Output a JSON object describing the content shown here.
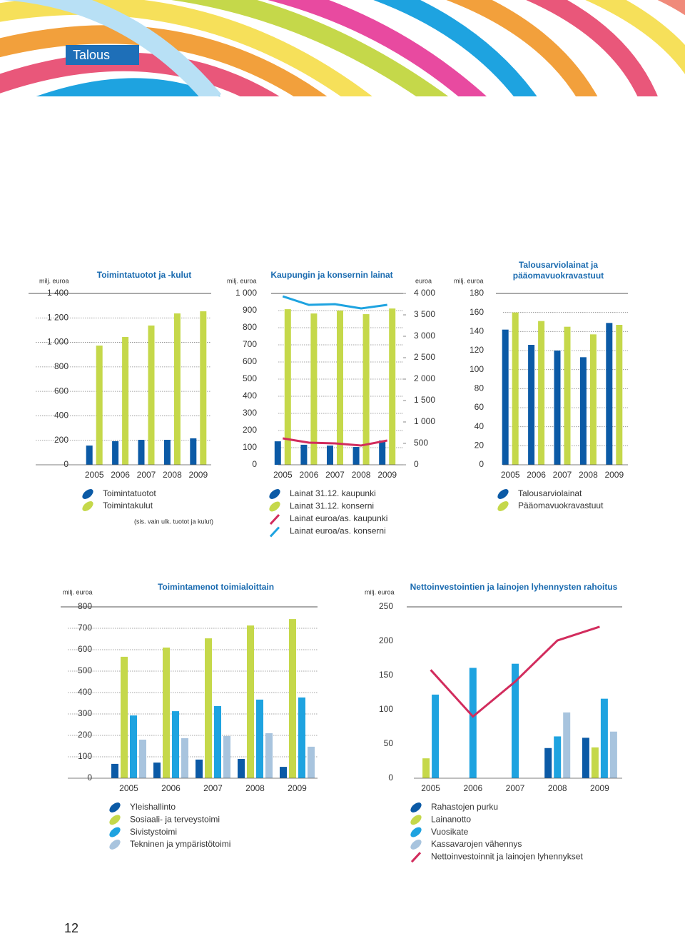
{
  "header": {
    "title": "Talous"
  },
  "page_number": "12",
  "chart_data": [
    {
      "type": "bar",
      "title": "Toimintatuotot ja -kulut",
      "unit_label": "milj. euroa",
      "note": "(sis. vain ulk. tuotot ja kulut)",
      "categories": [
        "2005",
        "2006",
        "2007",
        "2008",
        "2009"
      ],
      "series": [
        {
          "name": "Toimintatuotot",
          "color": "#0b5aa6",
          "values": [
            157,
            193,
            204,
            204,
            216
          ]
        },
        {
          "name": "Toimintakulut",
          "color": "#c5d84a",
          "values": [
            974,
            1044,
            1138,
            1237,
            1254
          ]
        }
      ],
      "ylim": [
        0,
        1400
      ],
      "yticks": [
        0,
        200,
        400,
        600,
        800,
        {
          "value": 1000,
          "label": "1 000"
        },
        {
          "value": 1200,
          "label": "1 200"
        },
        {
          "value": 1400,
          "label": "1 400"
        }
      ],
      "grid": true
    },
    {
      "type": "bar",
      "title": "Kaupungin ja konsernin lainat",
      "unit_label": "milj. euroa",
      "y2_unit_label": "euroa",
      "categories": [
        "2005",
        "2006",
        "2007",
        "2008",
        "2009"
      ],
      "series": [
        {
          "name": "Lainat 31.12. kaupunki",
          "color": "#0b5aa6",
          "values": [
            137,
            117,
            112,
            104,
            142
          ]
        },
        {
          "name": "Lainat 31.12. konserni",
          "color": "#c5d84a",
          "values": [
            908,
            883,
            900,
            879,
            912
          ]
        },
        {
          "name": "Lainat euroa/as. kaupunki",
          "color": "#d22c5d",
          "type": "line",
          "axis": "y2",
          "values": [
            617,
            517,
            500,
            450,
            567
          ]
        },
        {
          "name": "Lainat euroa/as. konserni",
          "color": "#1ea3e0",
          "type": "line",
          "axis": "y2",
          "values": [
            3933,
            3733,
            3750,
            3650,
            3733
          ]
        }
      ],
      "ylim": [
        0,
        1000
      ],
      "yticks": [
        0,
        100,
        200,
        300,
        400,
        500,
        600,
        700,
        800,
        900,
        {
          "value": 1000,
          "label": "1 000"
        }
      ],
      "y2lim": [
        0,
        4000
      ],
      "y2ticks": [
        0,
        500,
        {
          "value": 1000,
          "label": "1 000"
        },
        {
          "value": 1500,
          "label": "1 500"
        },
        {
          "value": 2000,
          "label": "2 000"
        },
        {
          "value": 2500,
          "label": "2 500"
        },
        {
          "value": 3000,
          "label": "3 000"
        },
        {
          "value": 3500,
          "label": "3 500"
        },
        {
          "value": 4000,
          "label": "4 000"
        }
      ],
      "grid": true
    },
    {
      "type": "bar",
      "title": "Talousarviolainat ja pääomavuokravastuut",
      "unit_label": "milj. euroa",
      "categories": [
        "2005",
        "2006",
        "2007",
        "2008",
        "2009"
      ],
      "series": [
        {
          "name": "Talousarviolainat",
          "color": "#0b5aa6",
          "values": [
            142,
            126,
            120,
            113,
            149
          ]
        },
        {
          "name": "Pääomavuokravastuut",
          "color": "#c5d84a",
          "values": [
            160,
            151,
            145,
            137,
            147
          ]
        }
      ],
      "ylim": [
        0,
        180
      ],
      "yticks": [
        0,
        20,
        40,
        60,
        80,
        100,
        120,
        140,
        160,
        180
      ],
      "grid": true
    },
    {
      "type": "bar",
      "title": "Toimintamenot toimialoittain",
      "unit_label": "milj. euroa",
      "categories": [
        "2005",
        "2006",
        "2007",
        "2008",
        "2009"
      ],
      "series": [
        {
          "name": "Yleishallinto",
          "color": "#0b5aa6",
          "values": [
            67,
            73,
            87,
            90,
            53
          ]
        },
        {
          "name": "Sosiaali- ja terveystoimi",
          "color": "#c5d84a",
          "values": [
            567,
            610,
            653,
            713,
            743
          ]
        },
        {
          "name": "Sivistystoimi",
          "color": "#1ea3e0",
          "values": [
            293,
            313,
            337,
            367,
            377
          ]
        },
        {
          "name": "Tekninen ja ympäristötoimi",
          "color": "#a8c4de",
          "values": [
            180,
            187,
            197,
            210,
            147
          ]
        }
      ],
      "ylim": [
        0,
        800
      ],
      "yticks": [
        0,
        100,
        200,
        300,
        400,
        500,
        600,
        700,
        800
      ],
      "grid": true
    },
    {
      "type": "bar",
      "title": "Nettoinvestointien ja lainojen lyhennysten rahoitus",
      "unit_label": "milj. euroa",
      "categories": [
        "2005",
        "2006",
        "2007",
        "2008",
        "2009"
      ],
      "series": [
        {
          "name": "Rahastojen purku",
          "color": "#0b5aa6",
          "values": [
            null,
            null,
            null,
            44,
            59
          ]
        },
        {
          "name": "Lainanotto",
          "color": "#c5d84a",
          "values": [
            29,
            null,
            null,
            null,
            45
          ]
        },
        {
          "name": "Vuosikate",
          "color": "#1ea3e0",
          "values": [
            122,
            161,
            167,
            61,
            116
          ]
        },
        {
          "name": "Kassavarojen vähennys",
          "color": "#a8c4de",
          "values": [
            null,
            null,
            null,
            96,
            68
          ]
        },
        {
          "name": "Nettoinvestoinnit ja lainojen lyhennykset",
          "color": "#d22c5d",
          "type": "line",
          "values": [
            158,
            90,
            141,
            201,
            221
          ]
        }
      ],
      "ylim": [
        0,
        250
      ],
      "yticks": [
        0,
        50,
        100,
        150,
        200,
        250
      ],
      "grid": false
    }
  ]
}
